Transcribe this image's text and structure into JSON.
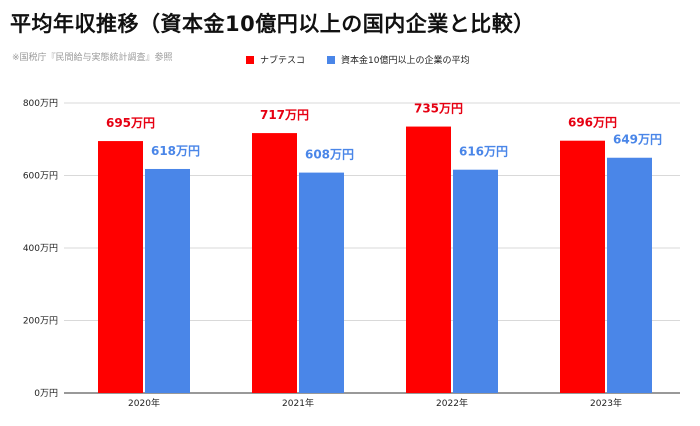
{
  "title": "平均年収推移（資本金10億円以上の国内企業と比較）",
  "source_note": "※国税庁『民間給与実態統計調査』参照",
  "colors": {
    "series1": "#ff0000",
    "series2": "#4a86e8",
    "grid": "#d9d9d9",
    "label1": "#e60012",
    "label2": "#4a86e8"
  },
  "chart_data": {
    "type": "bar",
    "categories": [
      "2020年",
      "2021年",
      "2022年",
      "2023年"
    ],
    "series": [
      {
        "name": "ナブテスコ",
        "values": [
          695,
          717,
          735,
          696
        ],
        "labels": [
          "695万円",
          "717万円",
          "735万円",
          "696万円"
        ]
      },
      {
        "name": "資本金10億円以上の企業の平均",
        "values": [
          618,
          608,
          616,
          649
        ],
        "labels": [
          "618万円",
          "608万円",
          "616万円",
          "649万円"
        ]
      }
    ],
    "y_ticks": [
      {
        "value": 0,
        "label": "0万円"
      },
      {
        "value": 200,
        "label": "200万円"
      },
      {
        "value": 400,
        "label": "400万円"
      },
      {
        "value": 600,
        "label": "600万円"
      },
      {
        "value": 800,
        "label": "800万円"
      }
    ],
    "ylim": [
      0,
      800
    ],
    "grid": true,
    "legend_position": "top"
  }
}
